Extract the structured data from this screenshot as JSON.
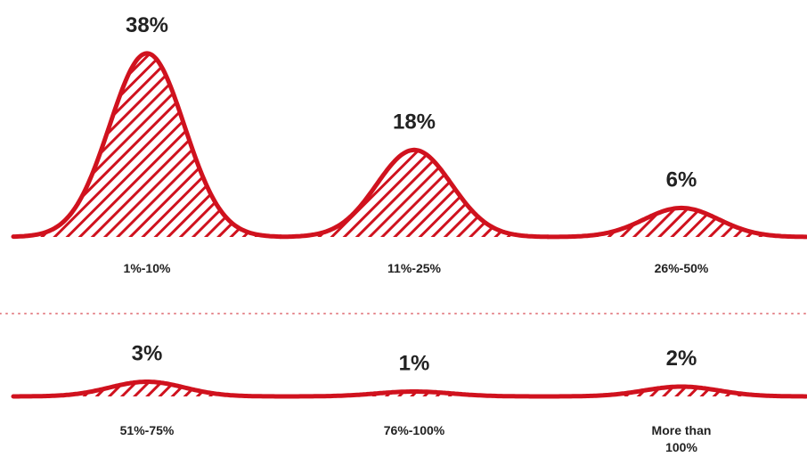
{
  "chart_data": {
    "type": "area",
    "categories": [
      "1%-10%",
      "11%-25%",
      "26%-50%",
      "51%-75%",
      "76%-100%",
      [
        "More than",
        "100%"
      ]
    ],
    "values": [
      38,
      18,
      6,
      3,
      1,
      2
    ],
    "value_labels": [
      "38%",
      "18%",
      "6%",
      "3%",
      "1%",
      "2%"
    ],
    "layout": "two rows of three bell-shaped peaks separated by a dotted line",
    "ylim": [
      0,
      40
    ],
    "colors": {
      "accent": "#d0121e",
      "text": "#222222",
      "divider": "#e58a8f"
    }
  }
}
